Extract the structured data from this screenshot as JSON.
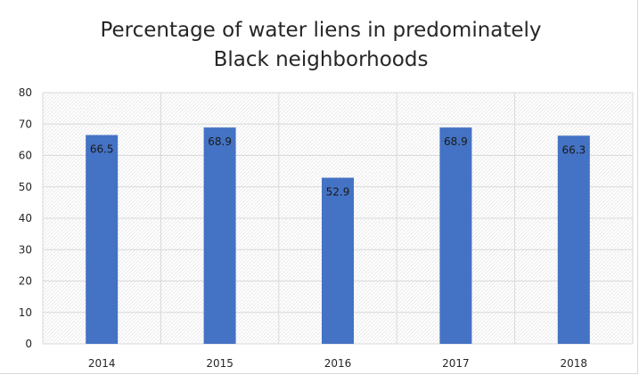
{
  "chart_data": {
    "type": "bar",
    "title": "Percentage of water liens in predominately Black neighborhoods",
    "categories": [
      "2014",
      "2015",
      "2016",
      "2017",
      "2018"
    ],
    "series": [
      {
        "values": [
          66.5,
          68.9,
          52.9,
          68.9,
          66.3
        ]
      }
    ],
    "data_labels": [
      "66.5",
      "68.9",
      "52.9",
      "68.9",
      "66.3"
    ],
    "ylim": [
      0,
      80
    ],
    "yticks": [
      0,
      10,
      20,
      30,
      40,
      50,
      60,
      70,
      80
    ],
    "grid": true,
    "bar_color": "#4472c4",
    "background_pattern": "light-hatch",
    "legend": "none"
  }
}
